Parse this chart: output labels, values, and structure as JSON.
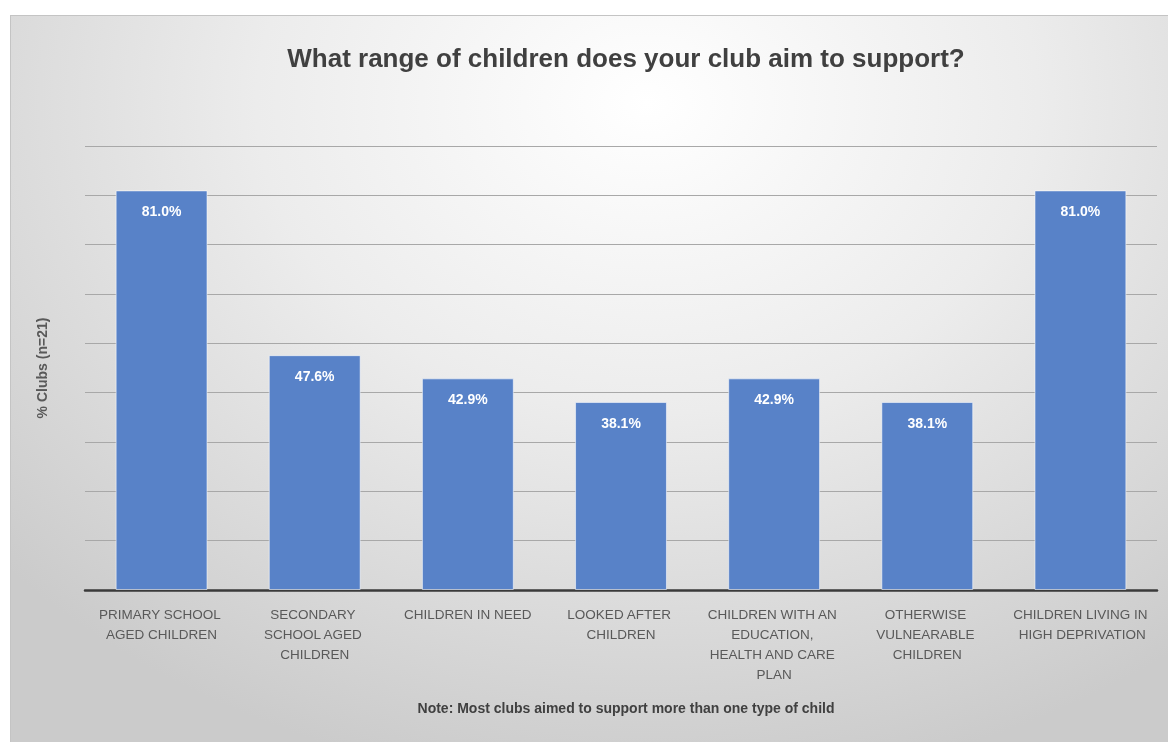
{
  "chart_data": {
    "type": "bar",
    "title": "What range of children does your club aim to support?",
    "ylabel": "% Clubs (n=21)",
    "categories": [
      "PRIMARY SCHOOL AGED CHILDREN",
      "SECONDARY SCHOOL AGED CHILDREN",
      "CHILDREN IN NEED",
      "LOOKED AFTER CHILDREN",
      "CHILDREN WITH AN EDUCATION, HEALTH AND CARE PLAN",
      "OTHERWISE VULNEARABLE CHILDREN",
      "CHILDREN LIVING IN HIGH DEPRIVATION"
    ],
    "values": [
      81.0,
      47.6,
      42.9,
      38.1,
      42.9,
      38.1,
      81.0
    ],
    "value_labels": [
      "81.0%",
      "47.6%",
      "42.9%",
      "38.1%",
      "42.9%",
      "38.1%",
      "81.0%"
    ],
    "color": "#5882c8",
    "ylim": [
      0,
      90
    ],
    "yticks": [
      {
        "value": 0,
        "label": null
      },
      {
        "value": 10,
        "label": null
      },
      {
        "value": 20,
        "label": null
      },
      {
        "value": 30,
        "label": null
      },
      {
        "value": 40,
        "label": null
      },
      {
        "value": 50,
        "label": null
      },
      {
        "value": 60,
        "label": null
      },
      {
        "value": 70,
        "label": null
      },
      {
        "value": 80,
        "label": null
      },
      {
        "value": 90,
        "label": null
      }
    ],
    "tick_labels": "x",
    "grid": "y",
    "annotations": [
      "Note: Most clubs aimed to support more than one type of child"
    ]
  }
}
